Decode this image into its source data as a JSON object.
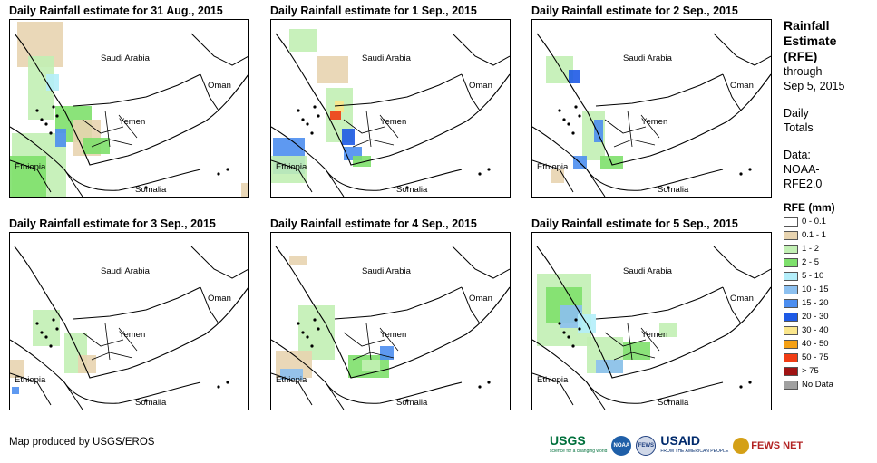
{
  "panels": [
    {
      "title": "Daily Rainfall estimate for 31 Aug., 2015"
    },
    {
      "title": "Daily Rainfall estimate for 1 Sep., 2015"
    },
    {
      "title": "Daily Rainfall estimate for 2 Sep., 2015"
    },
    {
      "title": "Daily Rainfall estimate for 3 Sep., 2015"
    },
    {
      "title": "Daily Rainfall estimate for 4 Sep., 2015"
    },
    {
      "title": "Daily Rainfall estimate for 5 Sep., 2015"
    }
  ],
  "map_labels": {
    "saudi": "Saudi Arabia",
    "oman": "Oman",
    "yemen": "Yemen",
    "ethiopia": "Ethiopia",
    "somalia": "Somalia"
  },
  "sidebar": {
    "title_lines": [
      "Rainfall",
      "Estimate",
      "(RFE)"
    ],
    "through": "through",
    "date": "Sep 5, 2015",
    "daily_lines": [
      "Daily",
      "Totals"
    ],
    "data_lines": [
      "Data:",
      "NOAA-",
      "RFE2.0"
    ]
  },
  "legend": {
    "title": "RFE (mm)",
    "items": [
      {
        "label": "0 - 0.1",
        "color": "#ffffff"
      },
      {
        "label": "0.1 - 1",
        "color": "#e8d4b0"
      },
      {
        "label": "1 - 2",
        "color": "#c2f0b4"
      },
      {
        "label": "2 - 5",
        "color": "#7ee06c"
      },
      {
        "label": "5 - 10",
        "color": "#b4eefa"
      },
      {
        "label": "10 - 15",
        "color": "#8cc0f0"
      },
      {
        "label": "15 - 20",
        "color": "#4c8ef0"
      },
      {
        "label": "20 - 30",
        "color": "#1e5ae6"
      },
      {
        "label": "30 - 40",
        "color": "#fae68c"
      },
      {
        "label": "40 - 50",
        "color": "#f5a014"
      },
      {
        "label": "50 - 75",
        "color": "#f03c14"
      },
      {
        "label": "> 75",
        "color": "#a01414"
      },
      {
        "label": "No Data",
        "color": "#a0a0a0"
      }
    ]
  },
  "footer": {
    "credit": "Map produced by USGS/EROS"
  },
  "logos": {
    "usgs": "USGS",
    "usgs_tag": "science for a changing world",
    "noaa": "NOAA",
    "fews": "FEWS",
    "usaid": "USAID",
    "usaid_tag": "FROM THE AMERICAN PEOPLE",
    "fewsnet": "FEWS NET"
  }
}
